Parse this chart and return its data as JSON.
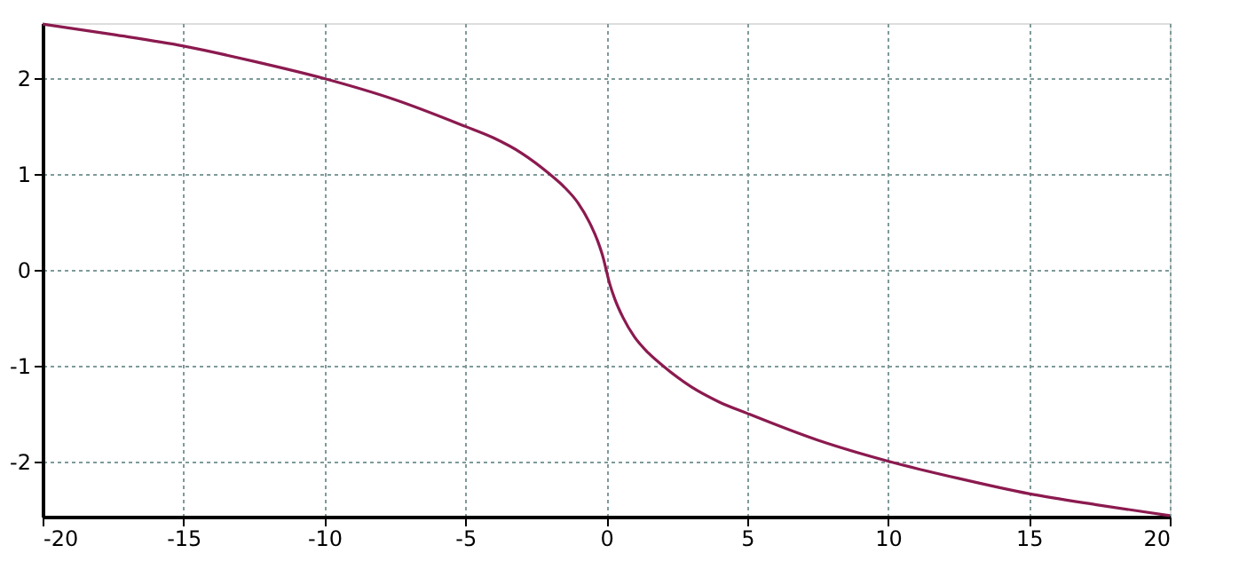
{
  "chart_data": {
    "type": "line",
    "x": [
      -20,
      -17.5,
      -15,
      -12.5,
      -10,
      -7.5,
      -5,
      -4,
      -3,
      -2,
      -1.5,
      -1,
      -0.6,
      -0.3,
      -0.1,
      0,
      0.1,
      0.3,
      0.6,
      1,
      1.5,
      2,
      3,
      4,
      5,
      7.5,
      10,
      12.5,
      15,
      17.5,
      20
    ],
    "series": [
      {
        "color": "#8b1a4f",
        "values": [
          2.57,
          2.46,
          2.34,
          2.18,
          2.0,
          1.78,
          1.5,
          1.38,
          1.22,
          1.0,
          0.87,
          0.7,
          0.5,
          0.3,
          0.12,
          0,
          -0.12,
          -0.3,
          -0.5,
          -0.7,
          -0.87,
          -1.0,
          -1.22,
          -1.38,
          -1.5,
          -1.78,
          -2.0,
          -2.18,
          -2.34,
          -2.46,
          -2.57
        ]
      }
    ],
    "xlim": [
      -20,
      20
    ],
    "xticks": [
      -20,
      -15,
      -10,
      -5,
      0,
      5,
      10,
      15,
      20
    ],
    "ylim": [
      -2.58,
      2.58
    ],
    "yticks": [
      -2,
      -1,
      0,
      1,
      2
    ],
    "grid": true,
    "marker": "none",
    "line_style": "solid"
  }
}
